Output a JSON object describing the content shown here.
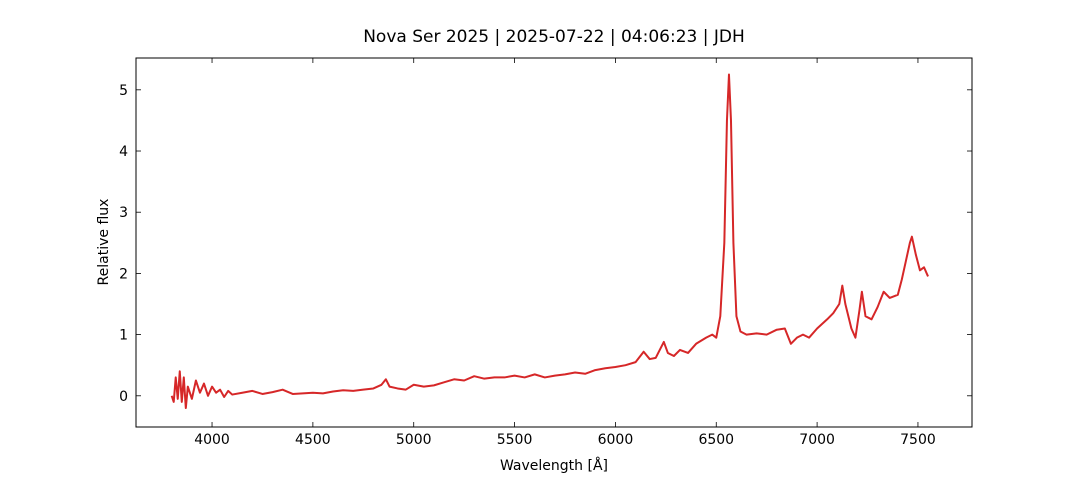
{
  "chart_data": {
    "type": "line",
    "title": "Nova Ser 2025 | 2025-07-22 | 04:06:23 | JDH",
    "x_label": "Wavelength [Å]",
    "y_label": "Relative flux",
    "x": [
      3800,
      3810,
      3820,
      3830,
      3840,
      3850,
      3860,
      3870,
      3880,
      3900,
      3920,
      3940,
      3960,
      3980,
      4000,
      4020,
      4040,
      4060,
      4080,
      4100,
      4150,
      4200,
      4250,
      4300,
      4350,
      4400,
      4450,
      4500,
      4550,
      4600,
      4650,
      4700,
      4750,
      4800,
      4840,
      4862,
      4880,
      4920,
      4960,
      5000,
      5050,
      5100,
      5150,
      5200,
      5250,
      5300,
      5350,
      5400,
      5450,
      5500,
      5550,
      5600,
      5650,
      5700,
      5750,
      5800,
      5850,
      5900,
      5950,
      6000,
      6050,
      6100,
      6140,
      6170,
      6200,
      6240,
      6260,
      6290,
      6320,
      6360,
      6400,
      6450,
      6480,
      6500,
      6520,
      6540,
      6553,
      6563,
      6573,
      6585,
      6600,
      6620,
      6650,
      6700,
      6750,
      6800,
      6840,
      6870,
      6900,
      6930,
      6960,
      7000,
      7050,
      7080,
      7110,
      7125,
      7140,
      7170,
      7190,
      7210,
      7222,
      7240,
      7270,
      7300,
      7330,
      7360,
      7400,
      7420,
      7440,
      7460,
      7470,
      7490,
      7510,
      7530,
      7550
    ],
    "series": [
      {
        "name": "Relative flux",
        "color": "#d62728",
        "values": [
          0,
          -0.1,
          0.3,
          -0.05,
          0.4,
          -0.1,
          0.3,
          -0.2,
          0.15,
          -0.05,
          0.25,
          0.05,
          0.2,
          0.0,
          0.15,
          0.05,
          0.1,
          -0.02,
          0.08,
          0.02,
          0.05,
          0.08,
          0.03,
          0.06,
          0.1,
          0.03,
          0.04,
          0.05,
          0.04,
          0.07,
          0.09,
          0.08,
          0.1,
          0.12,
          0.18,
          0.27,
          0.15,
          0.12,
          0.1,
          0.18,
          0.15,
          0.17,
          0.22,
          0.27,
          0.25,
          0.32,
          0.28,
          0.3,
          0.3,
          0.33,
          0.3,
          0.35,
          0.3,
          0.33,
          0.35,
          0.38,
          0.36,
          0.42,
          0.45,
          0.47,
          0.5,
          0.55,
          0.72,
          0.6,
          0.62,
          0.88,
          0.7,
          0.65,
          0.75,
          0.7,
          0.85,
          0.95,
          1.0,
          0.95,
          1.3,
          2.5,
          4.5,
          5.25,
          4.5,
          2.5,
          1.3,
          1.05,
          1.0,
          1.02,
          1.0,
          1.08,
          1.1,
          0.85,
          0.95,
          1.0,
          0.95,
          1.1,
          1.25,
          1.35,
          1.5,
          1.8,
          1.5,
          1.1,
          0.95,
          1.4,
          1.7,
          1.3,
          1.25,
          1.45,
          1.7,
          1.6,
          1.65,
          1.9,
          2.2,
          2.5,
          2.6,
          2.3,
          2.05,
          2.1,
          1.95
        ]
      }
    ],
    "xlim": [
      3623,
      7768
    ],
    "ylim": [
      -0.51,
      5.52
    ],
    "xticks": [
      4000,
      4500,
      5000,
      5500,
      6000,
      6500,
      7000,
      7500
    ],
    "yticks": [
      0,
      1,
      2,
      3,
      4,
      5
    ]
  }
}
